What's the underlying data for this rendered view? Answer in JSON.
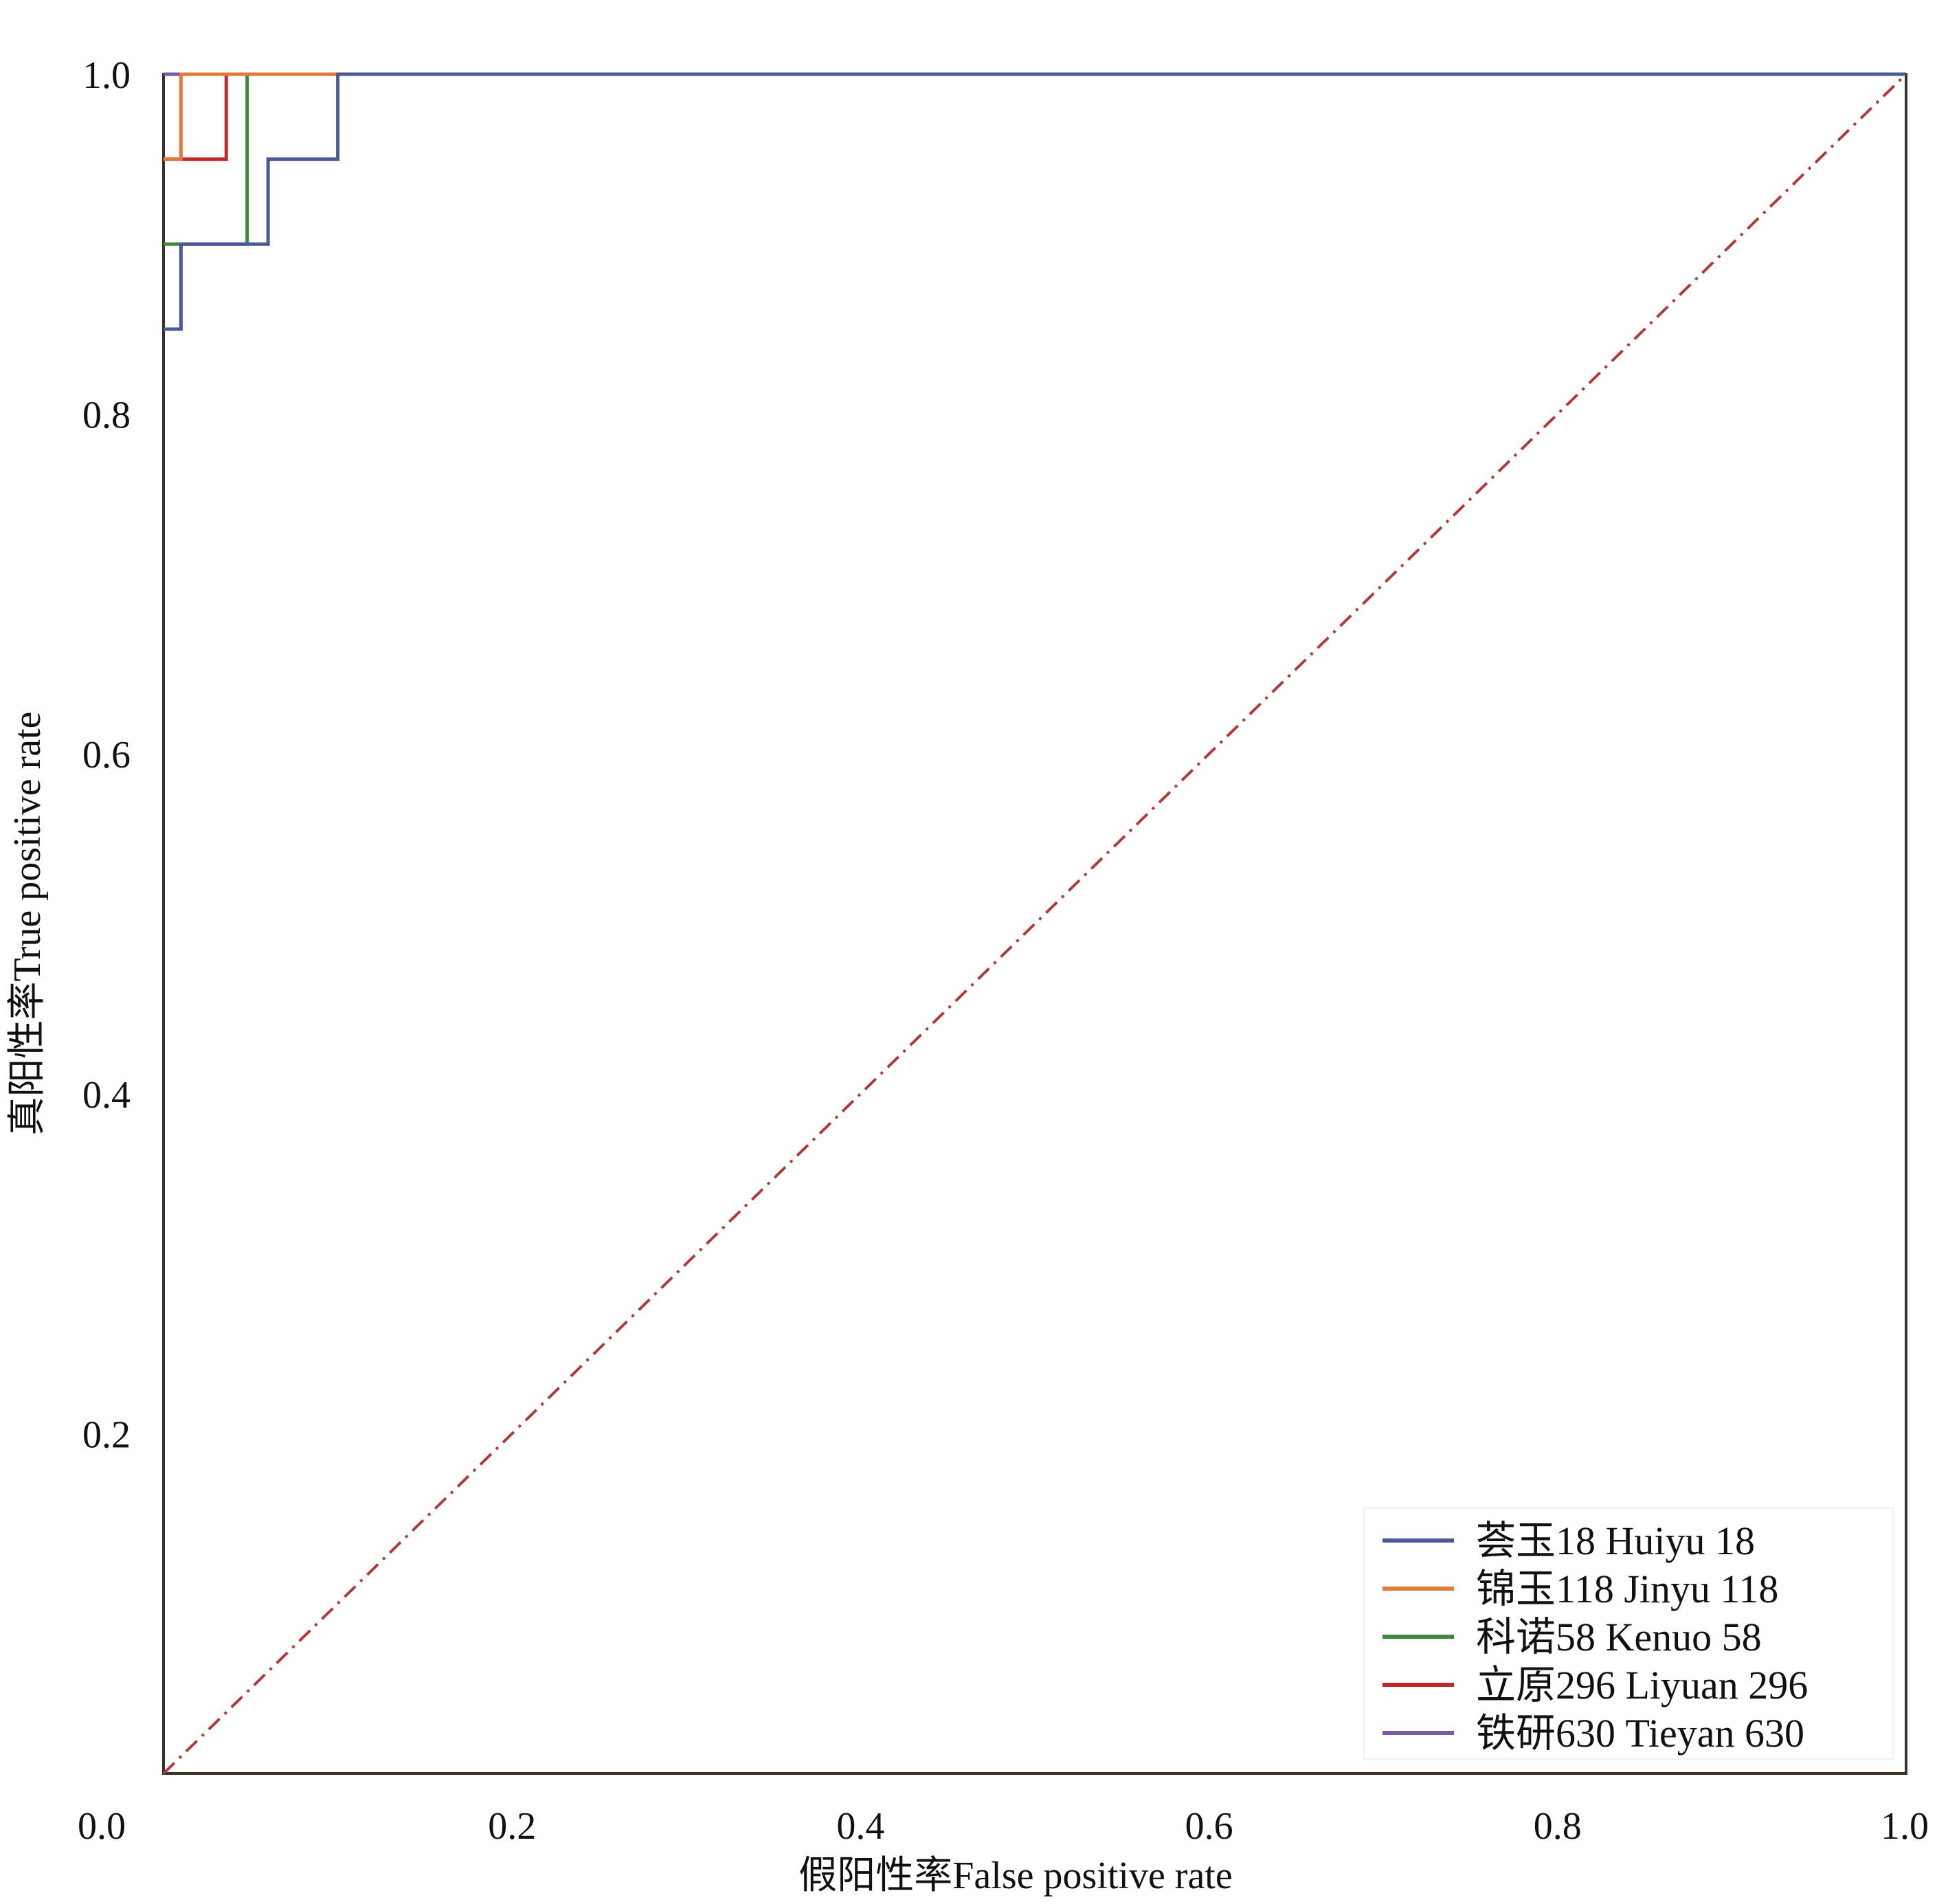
{
  "chart_data": {
    "type": "line",
    "xlabel": "假阳性率False positive rate",
    "ylabel": "真阳性率True positive rate",
    "xlim": [
      0,
      1
    ],
    "ylim": [
      0,
      1
    ],
    "grid": false,
    "legend_position": "bottom-right",
    "x_ticks": [
      {
        "value": 0.0,
        "label": "0.0"
      },
      {
        "value": 0.2,
        "label": "0.2"
      },
      {
        "value": 0.4,
        "label": "0.4"
      },
      {
        "value": 0.6,
        "label": "0.6"
      },
      {
        "value": 0.8,
        "label": "0.8"
      },
      {
        "value": 1.0,
        "label": "1.0"
      }
    ],
    "y_ticks": [
      {
        "value": 0.2,
        "label": "0.2"
      },
      {
        "value": 0.4,
        "label": "0.4"
      },
      {
        "value": 0.6,
        "label": "0.6"
      },
      {
        "value": 0.8,
        "label": "0.8"
      },
      {
        "value": 1.0,
        "label": "1.0"
      }
    ],
    "reference_line": {
      "style": "dash-dot",
      "color": "#b03a3a",
      "points": [
        [
          0,
          0
        ],
        [
          1,
          1
        ]
      ]
    },
    "series": [
      {
        "name": "荟玉18 Huiyu 18",
        "color": "#4a5a96",
        "points": [
          [
            0,
            0.85
          ],
          [
            0.01,
            0.85
          ],
          [
            0.01,
            0.9
          ],
          [
            0.06,
            0.9
          ],
          [
            0.06,
            0.95
          ],
          [
            0.1,
            0.95
          ],
          [
            0.1,
            1.0
          ],
          [
            1.0,
            1.0
          ]
        ]
      },
      {
        "name": "锦玉118 Jinyu 118",
        "color": "#e07a3c",
        "points": [
          [
            0,
            0.95
          ],
          [
            0.01,
            0.95
          ],
          [
            0.01,
            1.0
          ],
          [
            1.0,
            1.0
          ]
        ]
      },
      {
        "name": "科诺58 Kenuo 58",
        "color": "#3a8a3a",
        "points": [
          [
            0,
            0.9
          ],
          [
            0.048,
            0.9
          ],
          [
            0.048,
            1.0
          ],
          [
            1.0,
            1.0
          ]
        ]
      },
      {
        "name": "立原296 Liyuan 296",
        "color": "#c0282c",
        "points": [
          [
            0,
            0.95
          ],
          [
            0.036,
            0.95
          ],
          [
            0.036,
            1.0
          ],
          [
            1.0,
            1.0
          ]
        ]
      },
      {
        "name": "铁研630 Tieyan 630",
        "color": "#7a5aa8",
        "points": [
          [
            0,
            1.0
          ],
          [
            1.0,
            1.0
          ]
        ]
      }
    ]
  }
}
